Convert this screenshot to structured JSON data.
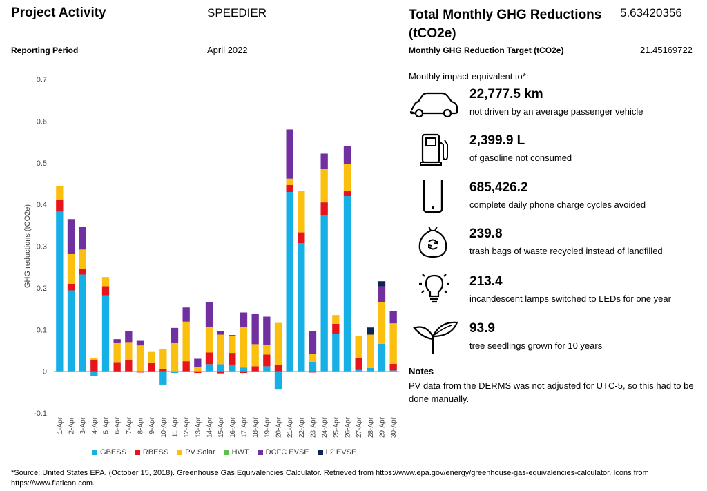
{
  "header": {
    "project_activity_label": "Project Activity",
    "project_activity_value": "SPEEDIER",
    "reporting_period_label": "Reporting Period",
    "reporting_period_value": "April 2022",
    "total_label": "Total Monthly GHG Reductions (tCO2e)",
    "total_value": "5.63420356",
    "target_label": "Monthly GHG Reduction Target (tCO2e)",
    "target_value": "21.45169722"
  },
  "impact": {
    "heading": "Monthly impact equivalent to*:",
    "items": [
      {
        "icon": "car-icon",
        "value": "22,777.5 km",
        "desc": "not driven by an average passenger vehicle"
      },
      {
        "icon": "fuel-pump-icon",
        "value": "2,399.9 L",
        "desc": "of gasoline not consumed"
      },
      {
        "icon": "smartphone-icon",
        "value": "685,426.2",
        "desc": "complete daily phone charge cycles avoided"
      },
      {
        "icon": "recycle-bag-icon",
        "value": "239.8",
        "desc": "trash bags of waste recycled instead of landfilled"
      },
      {
        "icon": "lightbulb-icon",
        "value": "213.4",
        "desc": "incandescent lamps switched to LEDs for one year"
      },
      {
        "icon": "seedling-icon",
        "value": "93.9",
        "desc": "tree seedlings grown for 10 years"
      }
    ]
  },
  "notes": {
    "title": "Notes",
    "text": "PV data from the DERMS was not adjusted for UTC-5, so this had to be done manually."
  },
  "footnote": "*Source: United States EPA. (October 15, 2018). Greenhouse Gas Equivalencies Calculator. Retrieved from https://www.epa.gov/energy/greenhouse-gas-equivalencies-calculator. Icons from https://www.flaticon.com.",
  "colors": {
    "GBESS": "#17b0e6",
    "RBESS": "#e8141c",
    "PV Solar": "#fbbf10",
    "HWT": "#5cc04c",
    "DCFC EVSE": "#7030a0",
    "L2 EVSE": "#0d2456"
  },
  "chart_data": {
    "type": "bar",
    "stacked": true,
    "ylabel": "GHG reductions (tCO2e)",
    "ylim": [
      -0.1,
      0.7
    ],
    "yticks": [
      -0.1,
      0,
      0.1,
      0.2,
      0.3,
      0.4,
      0.5,
      0.6,
      0.7
    ],
    "grid": false,
    "legend_position": "bottom",
    "categories": [
      "1-Apr",
      "2-Apr",
      "3-Apr",
      "4-Apr",
      "5-Apr",
      "6-Apr",
      "7-Apr",
      "8-Apr",
      "9-Apr",
      "10-Apr",
      "11-Apr",
      "12-Apr",
      "13-Apr",
      "14-Apr",
      "15-Apr",
      "16-Apr",
      "17-Apr",
      "18-Apr",
      "19-Apr",
      "20-Apr",
      "21-Apr",
      "22-Apr",
      "23-Apr",
      "24-Apr",
      "25-Apr",
      "26-Apr",
      "27-Apr",
      "28-Apr",
      "29-Apr",
      "30-Apr"
    ],
    "series": [
      {
        "name": "GBESS",
        "values": [
          0.383,
          0.194,
          0.232,
          -0.011,
          0.182,
          -0.002,
          0,
          0,
          0,
          -0.032,
          -0.004,
          0,
          0,
          0.017,
          0.017,
          0.016,
          0.009,
          0,
          0.012,
          -0.044,
          0.43,
          0.307,
          0.023,
          0.374,
          0.09,
          0.42,
          0.003,
          0.008,
          0.066,
          0.002
        ]
      },
      {
        "name": "RBESS",
        "values": [
          0.028,
          0.016,
          0.014,
          0.028,
          0.022,
          0.022,
          0.026,
          -0.003,
          0.021,
          0.006,
          0,
          0.024,
          -0.004,
          0.028,
          -0.005,
          0.028,
          -0.004,
          0.012,
          0.028,
          0.016,
          0.017,
          0.026,
          -0.003,
          0.031,
          0.024,
          0.013,
          0.028,
          0,
          0,
          0.016
        ]
      },
      {
        "name": "PV Solar",
        "values": [
          0.034,
          0.071,
          0.046,
          0.003,
          0.022,
          0.047,
          0.044,
          0.062,
          0.027,
          0.047,
          0.069,
          0.095,
          0.011,
          0.062,
          0.071,
          0.04,
          0.098,
          0.053,
          0.024,
          0.1,
          0.015,
          0.099,
          0.018,
          0.08,
          0.021,
          0.064,
          0.053,
          0.08,
          0.1,
          0.097
        ]
      },
      {
        "name": "HWT",
        "values": [
          0,
          0,
          0,
          0,
          0,
          0,
          0,
          0,
          0,
          0,
          0,
          0,
          0,
          0,
          0,
          0,
          0,
          0,
          0,
          0,
          0,
          0,
          0,
          0,
          0,
          0,
          0,
          0,
          0,
          0
        ]
      },
      {
        "name": "DCFC EVSE",
        "values": [
          0,
          0.084,
          0.054,
          0,
          0,
          0.008,
          0.026,
          0.011,
          0,
          0,
          0.035,
          0.034,
          0.019,
          0.058,
          0.008,
          0.003,
          0.034,
          0.072,
          0.067,
          0,
          0.118,
          0,
          0.055,
          0.037,
          0,
          0.044,
          0,
          0,
          0.038,
          0.03
        ]
      },
      {
        "name": "L2 EVSE",
        "values": [
          0,
          0,
          0,
          0,
          0,
          0,
          0,
          0,
          0,
          0,
          0,
          0,
          0,
          0,
          0,
          0,
          0,
          0,
          0,
          0,
          0,
          0,
          0,
          0,
          0,
          0,
          0,
          0.017,
          0.012,
          0
        ]
      }
    ]
  }
}
